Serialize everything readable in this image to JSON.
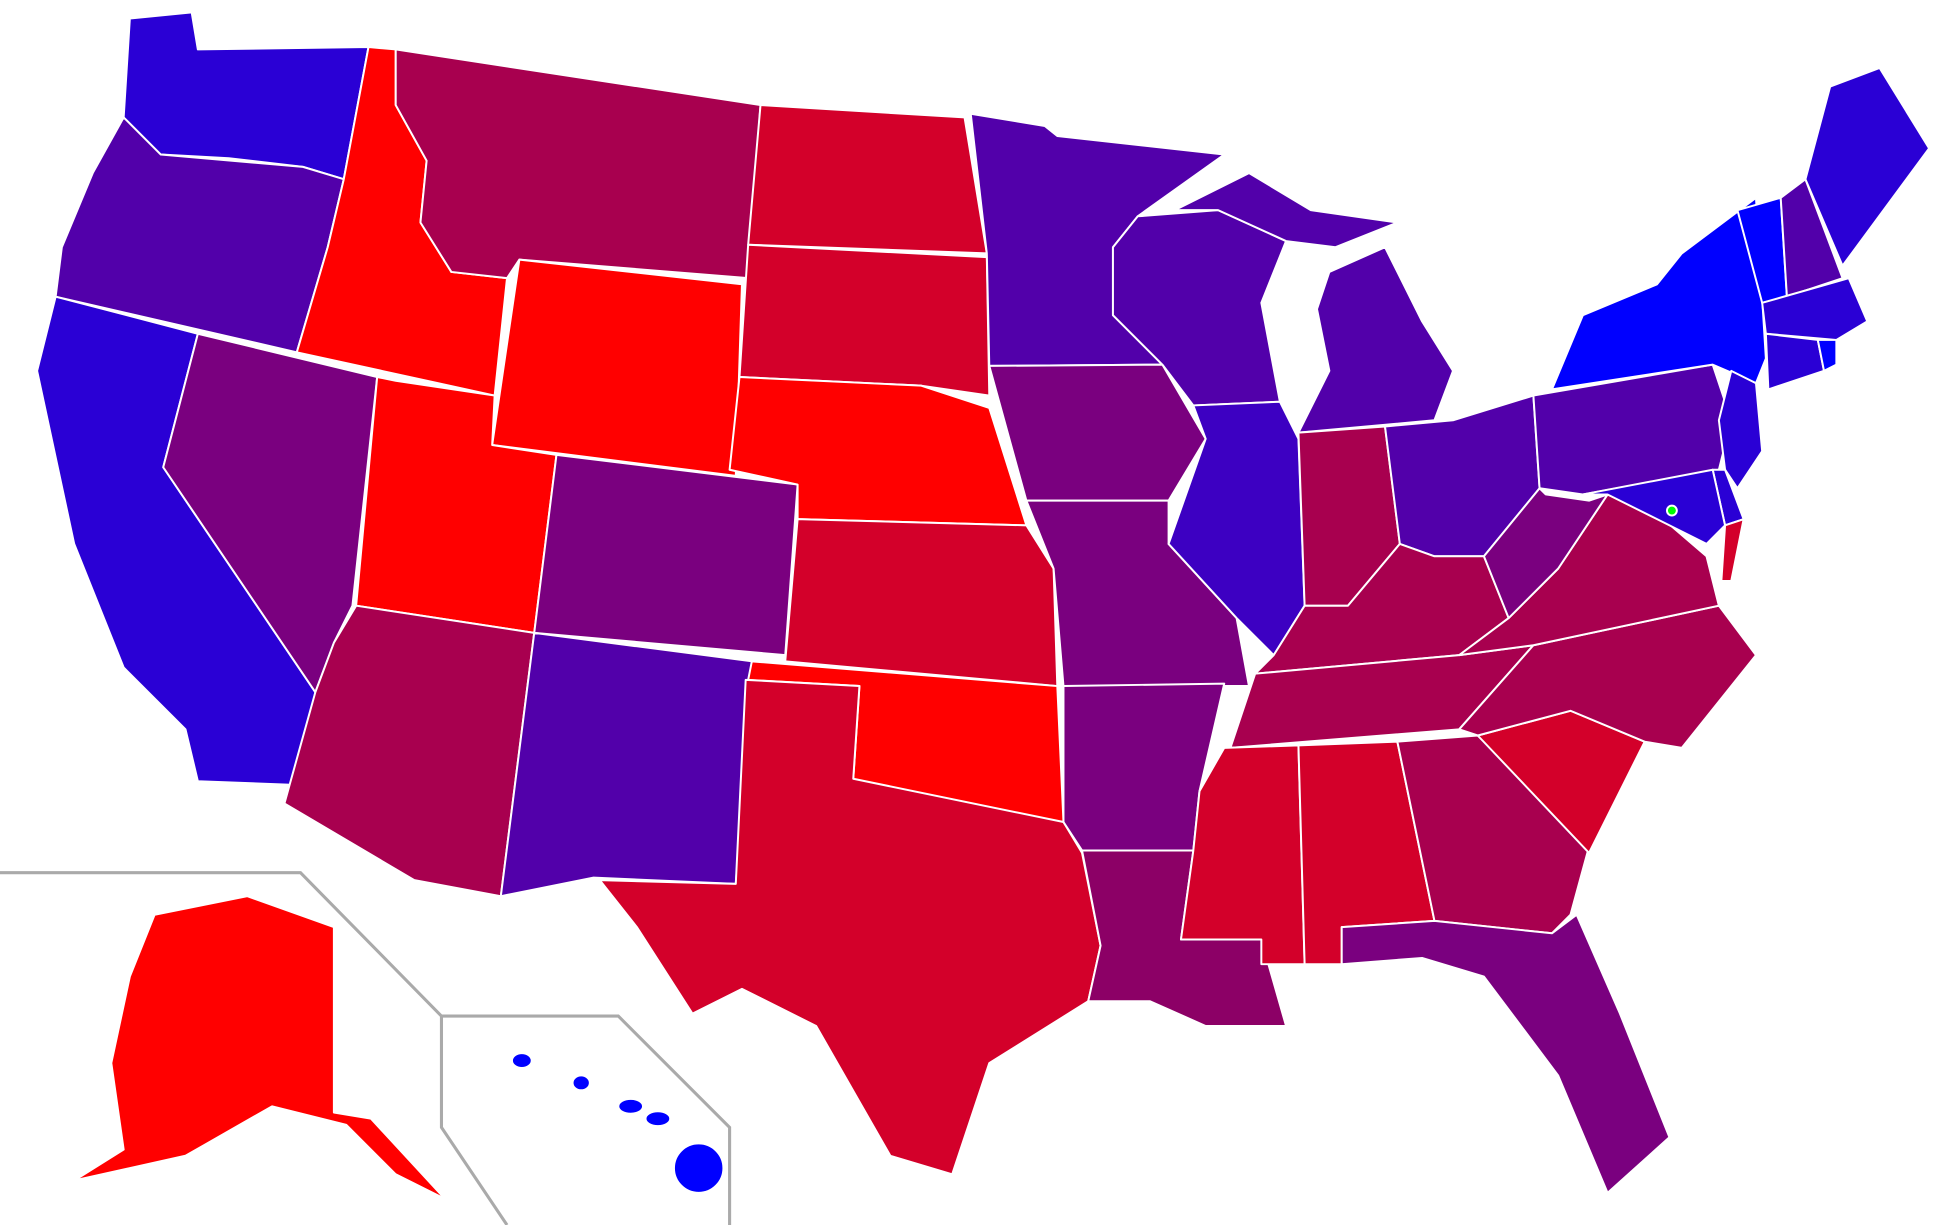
{
  "map": {
    "regions": [
      {
        "color": "#2a00d5"
      },
      {
        "color": "#5200aa"
      },
      {
        "color": "#2a00d5"
      },
      {
        "color": "#7a007f"
      },
      {
        "color": "#ff0000"
      },
      {
        "color": "#a8004f"
      },
      {
        "color": "#ff0000"
      },
      {
        "color": "#ff0000"
      },
      {
        "color": "#7a007f"
      },
      {
        "color": "#a8004f"
      },
      {
        "color": "#5200aa"
      },
      {
        "color": "#d3002a"
      },
      {
        "color": "#d3002a"
      },
      {
        "color": "#ff0000"
      },
      {
        "color": "#d3002a"
      },
      {
        "color": "#ff0000"
      },
      {
        "color": "#d3002a"
      },
      {
        "color": "#5200aa"
      },
      {
        "color": "#7a007f"
      },
      {
        "color": "#7a007f"
      },
      {
        "color": "#7a007f"
      },
      {
        "color": "#8c0066"
      },
      {
        "color": "#5200aa"
      },
      {
        "color": "#5200aa"
      },
      {
        "color": "#5200aa"
      },
      {
        "color": "#3d00c2"
      },
      {
        "color": "#a8004f"
      },
      {
        "color": "#5200aa"
      },
      {
        "color": "#a8004f"
      },
      {
        "color": "#a8004f"
      },
      {
        "color": "#d3002a"
      },
      {
        "color": "#d3002a"
      },
      {
        "color": "#a8004f"
      },
      {
        "color": "#7a007f"
      },
      {
        "color": "#d3002a"
      },
      {
        "color": "#a8004f"
      },
      {
        "color": "#a8004f"
      },
      {
        "color": "#7a007f"
      },
      {
        "color": "#5200aa"
      },
      {
        "color": "#0000ff"
      },
      {
        "color": "#0000ff"
      },
      {
        "color": "#5200aa"
      },
      {
        "color": "#2a00d5"
      },
      {
        "color": "#2a00d5"
      },
      {
        "color": "#2a00d5"
      },
      {
        "color": "#0000ff"
      },
      {
        "color": "#2a00d5"
      },
      {
        "color": "#2a00d5"
      },
      {
        "color": "#2a00d5"
      },
      {
        "color": "#d3002a"
      },
      {
        "color": "#00ff00"
      },
      {
        "color": "#ff0000"
      },
      {
        "color": "#0000ff"
      }
    ]
  }
}
